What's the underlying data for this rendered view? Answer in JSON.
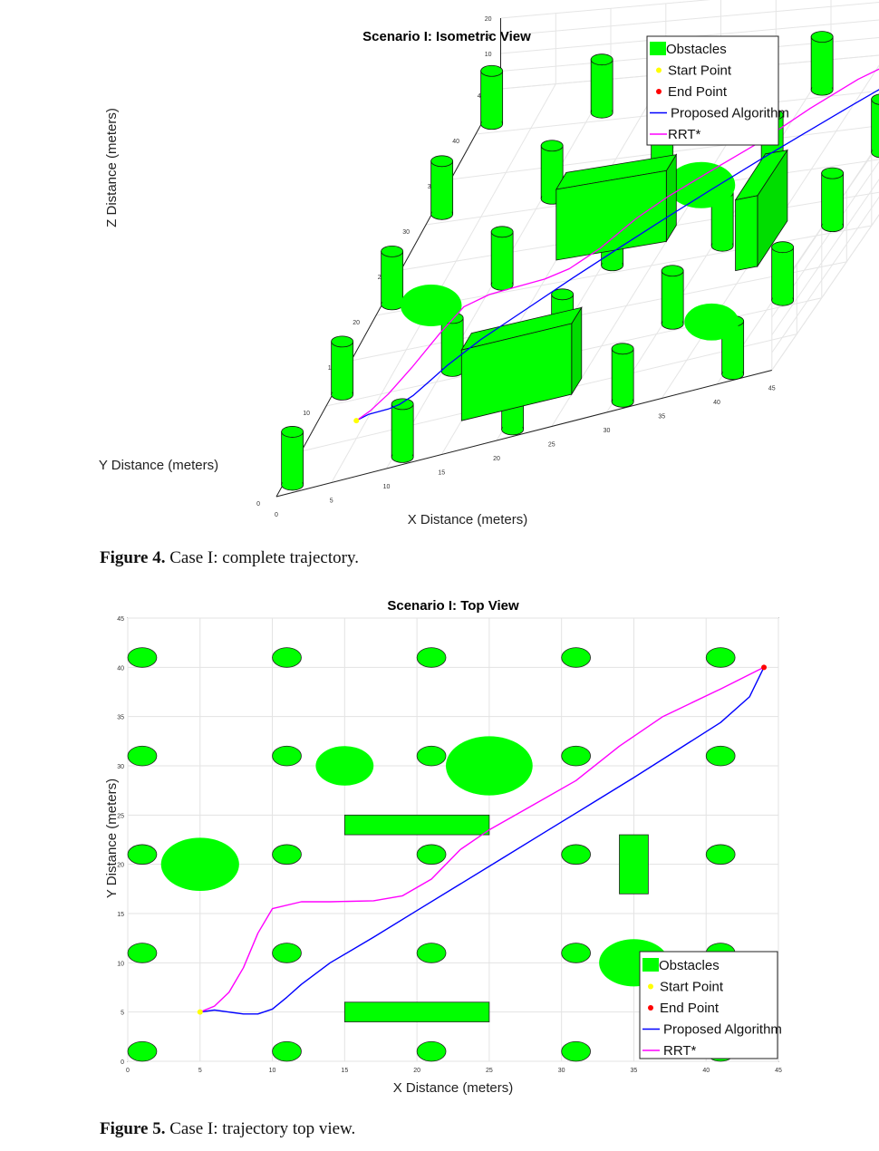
{
  "figure4": {
    "caption_label": "Figure 4.",
    "caption_text": "Case I: complete trajectory.",
    "chart_data": {
      "type": "line",
      "title": "Scenario I: Isometric View",
      "xlabel": "X Distance (meters)",
      "ylabel": "Y Distance (meters)",
      "zlabel": "Z Distance (meters)",
      "xticks": [
        "0",
        "5",
        "10",
        "15",
        "20",
        "25",
        "30",
        "35",
        "40",
        "45"
      ],
      "yticks": [
        "0",
        "5",
        "10",
        "15",
        "20",
        "25",
        "30",
        "35",
        "40",
        "45"
      ],
      "zticks": [
        "0",
        "5",
        "10",
        "15",
        "20"
      ],
      "xlim": [
        0,
        45
      ],
      "ylim": [
        0,
        45
      ],
      "zlim": [
        0,
        20
      ],
      "grid": true,
      "legend_position": "top-right",
      "legend": [
        "Obstacles",
        "Start Point",
        "End Point",
        "Proposed Algorithm",
        "RRT*"
      ],
      "colors": {
        "obstacle": "#00ff00",
        "start": "#ffff00",
        "end": "#ff0000",
        "proposed": "#0000ff",
        "rrt": "#ff00ff"
      }
    }
  },
  "figure5": {
    "caption_label": "Figure 5.",
    "caption_text": "Case I: trajectory top view.",
    "chart_data": {
      "type": "line",
      "title": "Scenario I: Top View",
      "xlabel": "X Distance (meters)",
      "ylabel": "Y Distance (meters)",
      "xticks": [
        "0",
        "5",
        "10",
        "15",
        "20",
        "25",
        "30",
        "35",
        "40",
        "45"
      ],
      "yticks": [
        "0",
        "5",
        "10",
        "15",
        "20",
        "25",
        "30",
        "35",
        "40",
        "45"
      ],
      "xlim": [
        0,
        45
      ],
      "ylim": [
        0,
        45
      ],
      "grid": true,
      "legend_position": "bottom-right",
      "legend": [
        "Obstacles",
        "Start Point",
        "End Point",
        "Proposed Algorithm",
        "RRT*"
      ],
      "start": [
        5,
        5
      ],
      "end": [
        44,
        40
      ],
      "cylinders": [
        [
          1,
          1
        ],
        [
          11,
          1
        ],
        [
          21,
          1
        ],
        [
          31,
          1
        ],
        [
          41,
          1
        ],
        [
          1,
          11
        ],
        [
          11,
          11
        ],
        [
          21,
          11
        ],
        [
          31,
          11
        ],
        [
          41,
          11
        ],
        [
          1,
          21
        ],
        [
          11,
          21
        ],
        [
          21,
          21
        ],
        [
          31,
          21
        ],
        [
          41,
          21
        ],
        [
          1,
          31
        ],
        [
          11,
          31
        ],
        [
          21,
          31
        ],
        [
          31,
          31
        ],
        [
          41,
          31
        ],
        [
          1,
          41
        ],
        [
          11,
          41
        ],
        [
          21,
          41
        ],
        [
          31,
          41
        ],
        [
          41,
          41
        ]
      ],
      "cylinder_radius": 1,
      "large_circles": [
        {
          "x": 5,
          "y": 20,
          "r": 2.7
        },
        {
          "x": 15,
          "y": 30,
          "r": 2
        },
        {
          "x": 25,
          "y": 30,
          "r": 3
        },
        {
          "x": 35,
          "y": 10,
          "r": 2.4
        }
      ],
      "boxes": [
        {
          "x0": 15,
          "y0": 23,
          "x1": 25,
          "y1": 25
        },
        {
          "x0": 15,
          "y0": 4,
          "x1": 25,
          "y1": 6
        },
        {
          "x0": 34,
          "y0": 17,
          "x1": 36,
          "y1": 23
        }
      ],
      "series": [
        {
          "name": "Proposed Algorithm",
          "x": [
            5,
            6,
            7,
            8,
            9,
            10,
            11,
            12,
            14,
            17,
            20,
            23,
            26,
            29,
            32,
            35,
            38,
            41,
            43,
            44
          ],
          "y": [
            5,
            5.2,
            5,
            4.8,
            4.8,
            5.3,
            6.5,
            7.8,
            10,
            12.6,
            15.3,
            18,
            20.7,
            23.4,
            26.1,
            28.8,
            31.6,
            34.4,
            37,
            40
          ]
        },
        {
          "name": "RRT*",
          "x": [
            5,
            6,
            7,
            8,
            9,
            10,
            12,
            14,
            17,
            19,
            21,
            23,
            25,
            28,
            31,
            34,
            37,
            41,
            44
          ],
          "y": [
            5,
            5.6,
            7,
            9.5,
            13,
            15.5,
            16.2,
            16.2,
            16.3,
            16.8,
            18.5,
            21.5,
            23.5,
            26,
            28.5,
            32,
            35,
            37.8,
            40
          ]
        }
      ]
    }
  }
}
